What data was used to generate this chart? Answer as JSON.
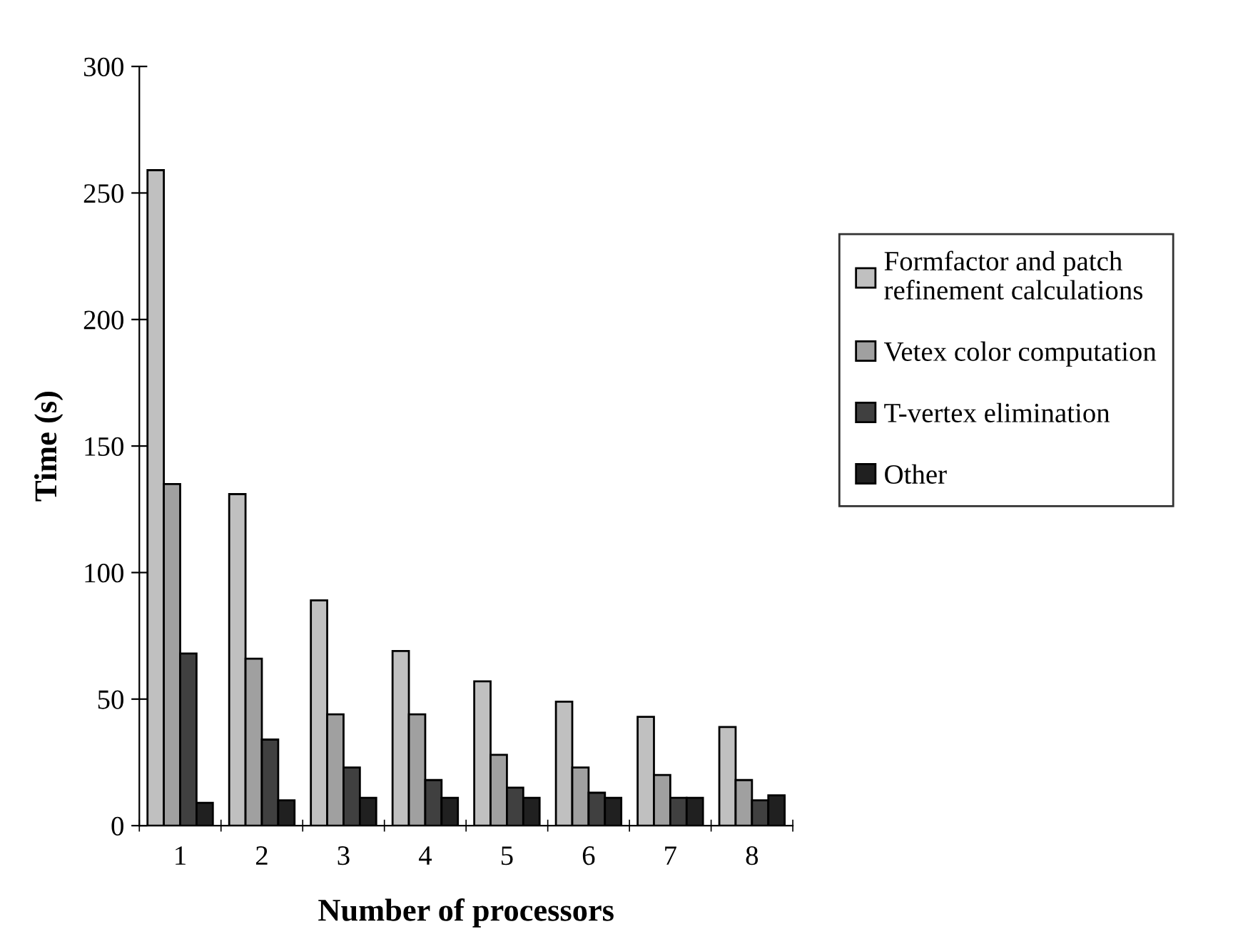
{
  "chart_data": {
    "type": "bar",
    "xlabel": "Number of processors",
    "ylabel": "Time (s)",
    "categories": [
      "1",
      "2",
      "3",
      "4",
      "5",
      "6",
      "7",
      "8"
    ],
    "series": [
      {
        "name": "Formfactor and patch\nrefinement calculations",
        "color": "#c0c0c0",
        "values": [
          259,
          131,
          89,
          69,
          57,
          49,
          43,
          39
        ]
      },
      {
        "name": "Vetex color computation",
        "color": "#a0a0a0",
        "values": [
          135,
          66,
          44,
          44,
          28,
          23,
          20,
          18
        ]
      },
      {
        "name": "T-vertex elimination",
        "color": "#404040",
        "values": [
          68,
          34,
          23,
          18,
          15,
          13,
          11,
          10
        ]
      },
      {
        "name": "Other",
        "color": "#202020",
        "values": [
          9,
          10,
          11,
          11,
          11,
          11,
          11,
          12
        ]
      }
    ],
    "ylim": [
      0,
      300
    ],
    "yticks": [
      0,
      50,
      100,
      150,
      200,
      250,
      300
    ],
    "legend": "right"
  }
}
